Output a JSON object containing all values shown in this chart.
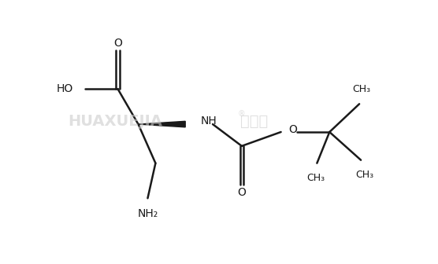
{
  "bg_color": "#ffffff",
  "line_color": "#1a1a1a",
  "line_width": 1.8,
  "text_color": "#1a1a1a",
  "font_size": 10,
  "small_font_size": 9,
  "figsize": [
    5.56,
    3.36
  ],
  "dpi": 100,
  "xlim": [
    0,
    5.56
  ],
  "ylim": [
    0,
    3.36
  ],
  "alpha_x": 1.75,
  "alpha_y": 1.78
}
